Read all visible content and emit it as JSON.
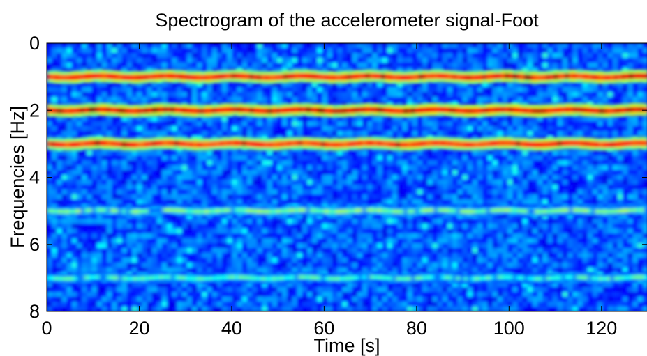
{
  "chart_data": {
    "type": "heatmap",
    "title": "Spectrogram of the accelerometer signal-Foot",
    "xlabel": "Time [s]",
    "ylabel": "Frequencies [Hz]",
    "xlim": [
      0,
      130
    ],
    "ylim": [
      0,
      8
    ],
    "y_reversed": true,
    "x_ticks": [
      0,
      20,
      40,
      60,
      80,
      100,
      120
    ],
    "y_ticks": [
      0,
      2,
      4,
      6,
      8
    ],
    "colormap": "jet",
    "colors": {
      "low": "#00008f",
      "mid": "#00ffff",
      "high": "#ff0000"
    },
    "bands": [
      {
        "frequency_hz": 1,
        "intensity": 0.88
      },
      {
        "frequency_hz": 2,
        "intensity": 0.92
      },
      {
        "frequency_hz": 3,
        "intensity": 0.86
      },
      {
        "frequency_hz": 5,
        "intensity": 0.42
      },
      {
        "frequency_hz": 7,
        "intensity": 0.36
      }
    ],
    "grid": false
  }
}
